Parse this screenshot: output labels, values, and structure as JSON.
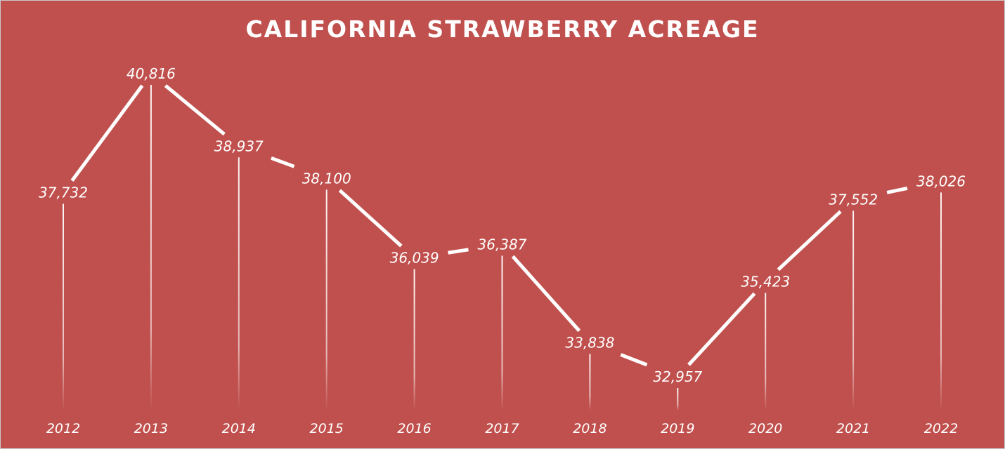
{
  "chart_data": {
    "type": "line",
    "title": "CALIFORNIA STRAWBERRY ACREAGE",
    "categories": [
      "2012",
      "2013",
      "2014",
      "2015",
      "2016",
      "2017",
      "2018",
      "2019",
      "2020",
      "2021",
      "2022"
    ],
    "values": [
      37732,
      40816,
      38937,
      38100,
      36039,
      36387,
      33838,
      32957,
      35423,
      37552,
      38026
    ],
    "value_labels": [
      "37,732",
      "40,816",
      "38,937",
      "38,100",
      "36,039",
      "36,387",
      "33,838",
      "32,957",
      "35,423",
      "37,552",
      "38,026"
    ],
    "xlabel": "",
    "ylabel": "",
    "grid": false,
    "legend": "none",
    "colors": {
      "background": "#C0504D",
      "line": "#FFFFFF",
      "text": "#FFFFFF"
    }
  }
}
